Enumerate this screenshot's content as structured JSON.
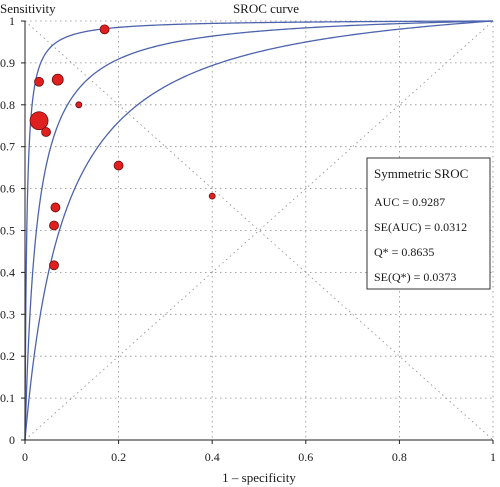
{
  "chart_data": {
    "type": "scatter",
    "title": "SROC curve",
    "xlabel": "1 – specificity",
    "ylabel": "Sensitivity",
    "xlim": [
      0,
      1
    ],
    "ylim": [
      0,
      1
    ],
    "x_ticks": [
      "0",
      "0.2",
      "0.4",
      "0.6",
      "0.8",
      "1"
    ],
    "y_ticks": [
      "0",
      "0.1",
      "0.2",
      "0.3",
      "0.4",
      "0.5",
      "0.6",
      "0.7",
      "0.8",
      "0.9",
      "1"
    ],
    "grid": "dotted",
    "reference_lines": [
      "diagonal y = x",
      "anti-diagonal y = 1 − x"
    ],
    "curve_color": "#4d64ad",
    "point_color": "#e0201f",
    "curves": [
      {
        "q_star": 0.9415
      },
      {
        "q_star": 0.8635
      },
      {
        "q_star": 0.7803
      }
    ],
    "points": [
      {
        "x": 0.17,
        "y": 0.98,
        "size": "small"
      },
      {
        "x": 0.03,
        "y": 0.855,
        "size": "small"
      },
      {
        "x": 0.07,
        "y": 0.86,
        "size": "medium"
      },
      {
        "x": 0.115,
        "y": 0.8,
        "size": "tiny"
      },
      {
        "x": 0.03,
        "y": 0.762,
        "size": "large"
      },
      {
        "x": 0.045,
        "y": 0.735,
        "size": "small"
      },
      {
        "x": 0.2,
        "y": 0.655,
        "size": "small"
      },
      {
        "x": 0.4,
        "y": 0.582,
        "size": "tiny"
      },
      {
        "x": 0.065,
        "y": 0.555,
        "size": "small"
      },
      {
        "x": 0.062,
        "y": 0.512,
        "size": "small"
      },
      {
        "x": 0.062,
        "y": 0.417,
        "size": "small"
      }
    ],
    "legend_position": "right",
    "legend": {
      "title": "Symmetric SROC",
      "lines": [
        "AUC = 0.9287",
        "SE(AUC) = 0.0312",
        "Q* = 0.8635",
        "SE(Q*) = 0.0373"
      ]
    }
  }
}
